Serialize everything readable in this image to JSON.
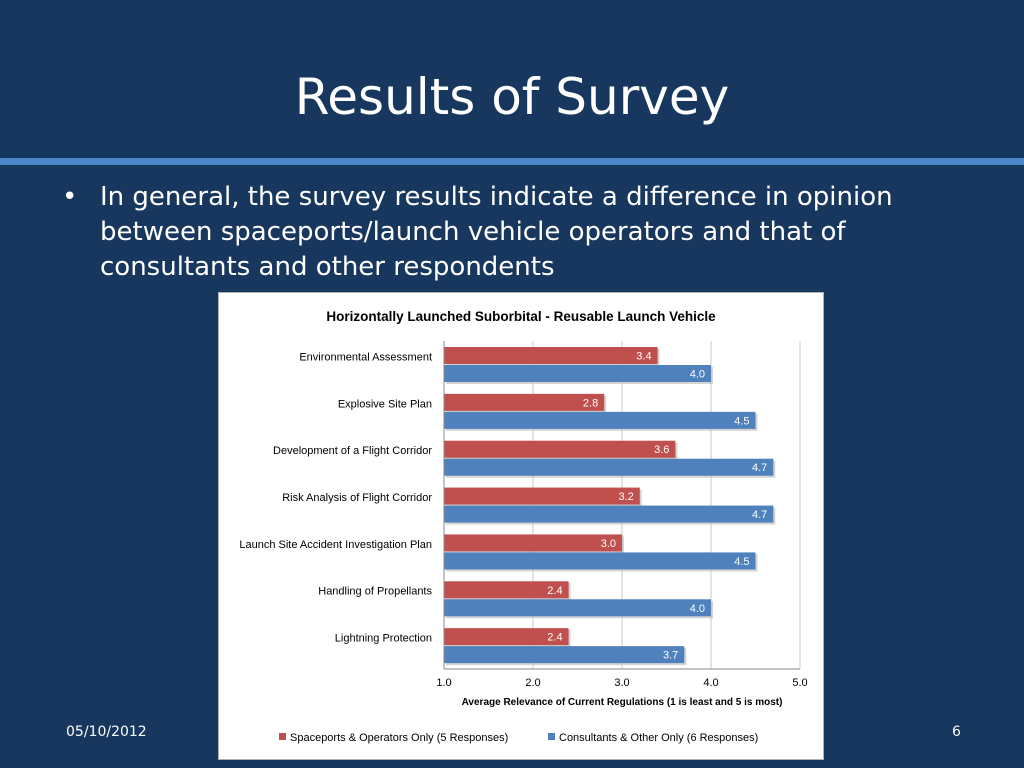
{
  "slide": {
    "title": "Results of Survey",
    "bullet_marker": "•",
    "bullet_text": "In general, the survey results indicate a difference in opinion between spaceports/launch vehicle operators and that of consultants and other respondents",
    "date": "05/10/2012",
    "page_number": "6"
  },
  "colors": {
    "background": "#17375e",
    "rule": "#4a86c8",
    "series_red": "#c0504d",
    "series_blue": "#4f81bd"
  },
  "chart_data": {
    "type": "bar",
    "orientation": "horizontal",
    "title": "Horizontally Launched Suborbital - Reusable Launch Vehicle",
    "xlabel": "Average Relevance of Current Regulations (1 is least and 5 is most)",
    "ylabel": "",
    "xlim": [
      1.0,
      5.0
    ],
    "xticks": [
      "1.0",
      "2.0",
      "3.0",
      "4.0",
      "5.0"
    ],
    "grid": true,
    "legend_position": "bottom",
    "categories": [
      "Environmental Assessment",
      "Explosive Site Plan",
      "Development of a Flight Corridor",
      "Risk Analysis of Flight Corridor",
      "Launch Site Accident Investigation Plan",
      "Handling of Propellants",
      "Lightning Protection"
    ],
    "series": [
      {
        "name": "Spaceports & Operators Only (5 Responses)",
        "color": "#c0504d",
        "values": [
          3.4,
          2.8,
          3.6,
          3.2,
          3.0,
          2.4,
          2.4
        ],
        "labels": [
          "3.4",
          "2.8",
          "3.6",
          "3.2",
          "3.0",
          "2.4",
          "2.4"
        ]
      },
      {
        "name": "Consultants & Other Only (6 Responses)",
        "color": "#4f81bd",
        "values": [
          4.0,
          4.5,
          4.7,
          4.7,
          4.5,
          4.0,
          3.7
        ],
        "labels": [
          "4.0",
          "4.5",
          "4.7",
          "4.7",
          "4.5",
          "4.0",
          "3.7"
        ]
      }
    ]
  }
}
